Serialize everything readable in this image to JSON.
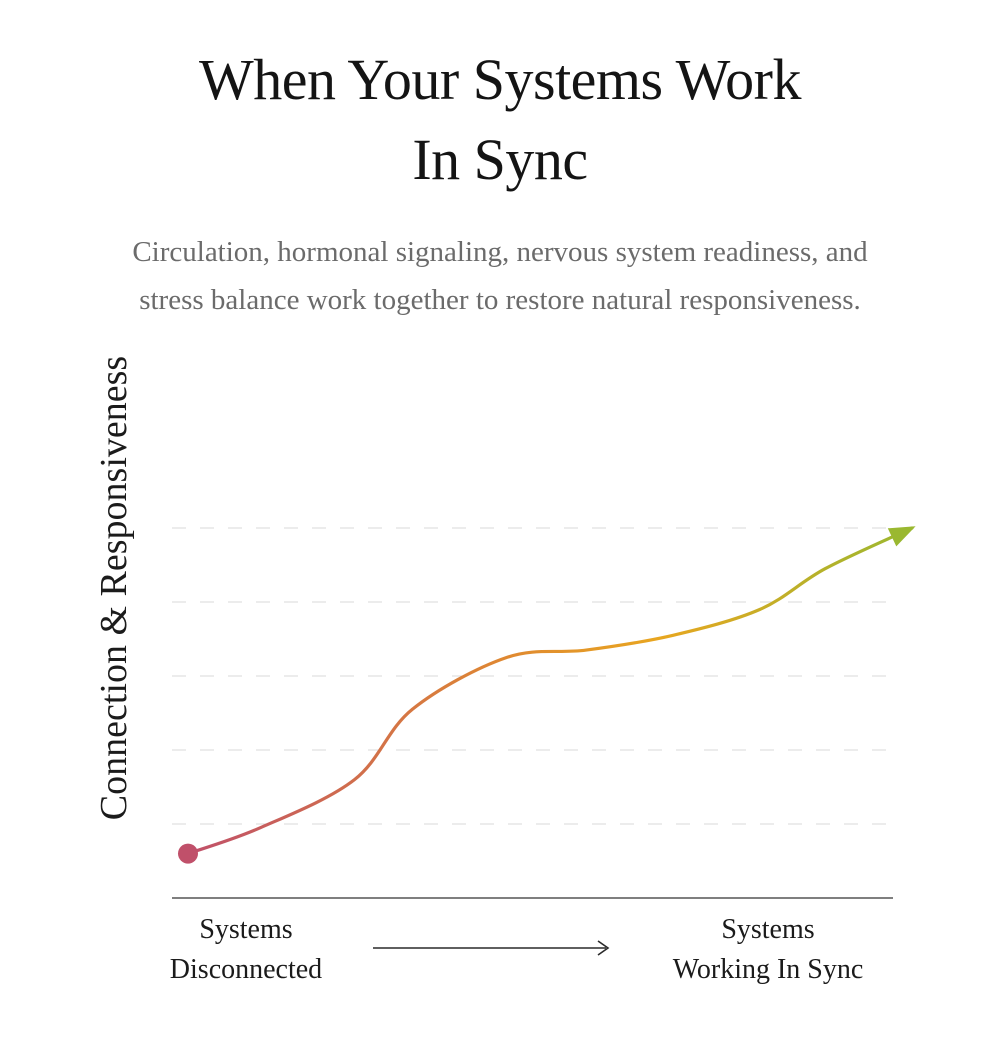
{
  "header": {
    "title_lines": [
      "When Your Systems Work",
      "In Sync"
    ],
    "subtitle_lines": [
      "Circulation, hormonal signaling, nervous system readiness, and",
      "stress balance work together to restore natural responsiveness."
    ]
  },
  "chart_data": {
    "type": "line",
    "title": "When Your Systems Work In Sync",
    "subtitle": "Circulation, hormonal signaling, nervous system readiness, and stress balance work together to restore natural responsiveness.",
    "ylabel": "Connection & Responsiveness",
    "xlabel": "",
    "x_start_label_lines": [
      "Systems",
      "Disconnected"
    ],
    "x_end_label_lines": [
      "Systems",
      "Working In Sync"
    ],
    "xlim": [
      0,
      1
    ],
    "ylim": [
      0,
      5
    ],
    "grid": true,
    "gridlines_y": [
      1,
      2,
      3,
      4,
      5
    ],
    "legend": "none",
    "series": [
      {
        "x": [
          0.0,
          0.1,
          0.23,
          0.31,
          0.44,
          0.55,
          0.67,
          0.79,
          0.88,
          1.0
        ],
        "y": [
          0.6,
          0.95,
          1.6,
          2.55,
          3.25,
          3.35,
          3.55,
          3.9,
          4.45,
          5.0
        ]
      }
    ],
    "start_marker_color": "#c0506a",
    "gradient_colors": [
      "#c0506a",
      "#e08a30",
      "#e8a620",
      "#9ab830"
    ],
    "arrow_color": "#9ab830"
  }
}
